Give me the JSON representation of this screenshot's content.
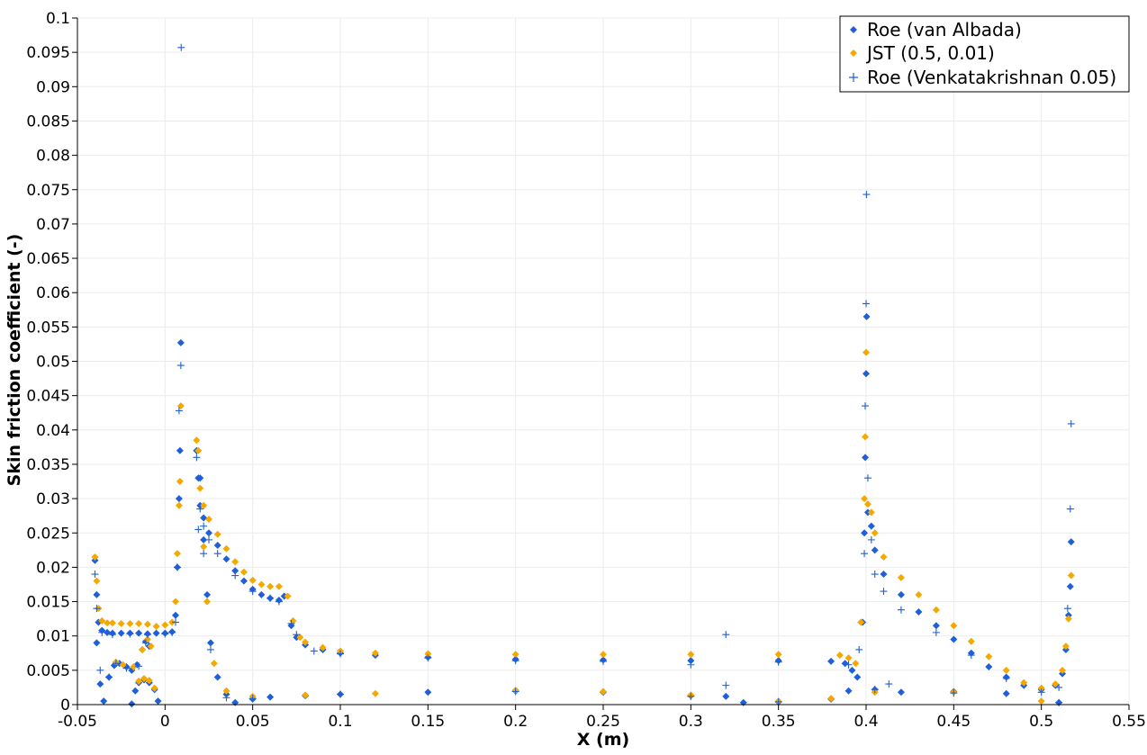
{
  "chart_data": {
    "type": "scatter",
    "title": "",
    "xlabel": "X (m)",
    "ylabel": "Skin friction coefficient (-)",
    "xlim": [
      -0.05,
      0.55
    ],
    "ylim": [
      0,
      0.1
    ],
    "grid": true,
    "legend_position": "top-right",
    "x_ticks": [
      "-0.05",
      "0",
      "0.05",
      "0.1",
      "0.15",
      "0.2",
      "0.25",
      "0.3",
      "0.35",
      "0.4",
      "0.45",
      "0.5",
      "0.55"
    ],
    "y_ticks": [
      "0",
      "0.005",
      "0.01",
      "0.015",
      "0.02",
      "0.025",
      "0.03",
      "0.035",
      "0.04",
      "0.045",
      "0.05",
      "0.055",
      "0.06",
      "0.065",
      "0.07",
      "0.075",
      "0.08",
      "0.085",
      "0.09",
      "0.095",
      "0.1"
    ],
    "series": [
      {
        "name": "Roe (van Albada)",
        "color": "#1f5fd8",
        "marker": "diamond",
        "points": [
          [
            -0.04,
            0.021
          ],
          [
            -0.039,
            0.016
          ],
          [
            -0.038,
            0.012
          ],
          [
            -0.036,
            0.0108
          ],
          [
            -0.033,
            0.0105
          ],
          [
            -0.03,
            0.0104
          ],
          [
            -0.025,
            0.0104
          ],
          [
            -0.02,
            0.0104
          ],
          [
            -0.015,
            0.0104
          ],
          [
            -0.01,
            0.0103
          ],
          [
            -0.005,
            0.0104
          ],
          [
            0.0,
            0.0104
          ],
          [
            0.004,
            0.0106
          ],
          [
            0.006,
            0.013
          ],
          [
            0.007,
            0.02
          ],
          [
            0.008,
            0.03
          ],
          [
            0.0085,
            0.037
          ],
          [
            0.009,
            0.0527
          ],
          [
            -0.039,
            0.009
          ],
          [
            -0.037,
            0.003
          ],
          [
            -0.035,
            0.0005
          ],
          [
            -0.032,
            0.004
          ],
          [
            -0.029,
            0.0057
          ],
          [
            -0.026,
            0.006
          ],
          [
            -0.022,
            0.0055
          ],
          [
            -0.019,
            0.005
          ],
          [
            -0.016,
            0.0058
          ],
          [
            -0.013,
            0.008
          ],
          [
            -0.011,
            0.0092
          ],
          [
            -0.009,
            0.0085
          ],
          [
            -0.019,
            0.0001
          ],
          [
            -0.017,
            0.002
          ],
          [
            -0.015,
            0.0032
          ],
          [
            -0.012,
            0.0036
          ],
          [
            -0.009,
            0.0032
          ],
          [
            -0.006,
            0.0022
          ],
          [
            -0.004,
            0.0005
          ],
          [
            0.018,
            0.037
          ],
          [
            0.019,
            0.033
          ],
          [
            0.02,
            0.029
          ],
          [
            0.022,
            0.0272
          ],
          [
            0.025,
            0.025
          ],
          [
            0.03,
            0.0232
          ],
          [
            0.035,
            0.0212
          ],
          [
            0.04,
            0.0195
          ],
          [
            0.045,
            0.018
          ],
          [
            0.05,
            0.0168
          ],
          [
            0.055,
            0.016
          ],
          [
            0.06,
            0.0155
          ],
          [
            0.065,
            0.0152
          ],
          [
            0.068,
            0.0158
          ],
          [
            0.072,
            0.0115
          ],
          [
            0.075,
            0.0098
          ],
          [
            0.08,
            0.0087
          ],
          [
            0.09,
            0.008
          ],
          [
            0.1,
            0.0075
          ],
          [
            0.12,
            0.0072
          ],
          [
            0.15,
            0.0069
          ],
          [
            0.2,
            0.0066
          ],
          [
            0.25,
            0.0065
          ],
          [
            0.3,
            0.0064
          ],
          [
            0.35,
            0.0064
          ],
          [
            0.38,
            0.0063
          ],
          [
            0.388,
            0.006
          ],
          [
            0.392,
            0.005
          ],
          [
            0.395,
            0.004
          ],
          [
            0.398,
            0.012
          ],
          [
            0.399,
            0.025
          ],
          [
            0.3995,
            0.036
          ],
          [
            0.4,
            0.0482
          ],
          [
            0.4003,
            0.0565
          ],
          [
            0.401,
            0.028
          ],
          [
            0.403,
            0.026
          ],
          [
            0.405,
            0.0225
          ],
          [
            0.41,
            0.019
          ],
          [
            0.42,
            0.016
          ],
          [
            0.43,
            0.0135
          ],
          [
            0.44,
            0.0115
          ],
          [
            0.45,
            0.0095
          ],
          [
            0.46,
            0.0075
          ],
          [
            0.47,
            0.0055
          ],
          [
            0.48,
            0.004
          ],
          [
            0.49,
            0.0028
          ],
          [
            0.5,
            0.0022
          ],
          [
            0.508,
            0.0028
          ],
          [
            0.512,
            0.0045
          ],
          [
            0.514,
            0.008
          ],
          [
            0.5155,
            0.013
          ],
          [
            0.5165,
            0.0172
          ],
          [
            0.517,
            0.0237
          ],
          [
            0.02,
            0.033
          ],
          [
            0.022,
            0.024
          ],
          [
            0.024,
            0.016
          ],
          [
            0.026,
            0.009
          ],
          [
            0.03,
            0.004
          ],
          [
            0.035,
            0.0015
          ],
          [
            0.04,
            0.0003
          ],
          [
            0.05,
            0.0008
          ],
          [
            0.06,
            0.0011
          ],
          [
            0.08,
            0.0013
          ],
          [
            0.1,
            0.0015
          ],
          [
            0.15,
            0.0018
          ],
          [
            0.2,
            0.002
          ],
          [
            0.25,
            0.0018
          ],
          [
            0.3,
            0.0013
          ],
          [
            0.32,
            0.0012
          ],
          [
            0.33,
            0.0003
          ],
          [
            0.35,
            0.0004
          ],
          [
            0.38,
            0.0008
          ],
          [
            0.39,
            0.002
          ],
          [
            0.405,
            0.0022
          ],
          [
            0.42,
            0.0018
          ],
          [
            0.45,
            0.0019
          ],
          [
            0.48,
            0.0016
          ],
          [
            0.51,
            0.0003
          ]
        ]
      },
      {
        "name": "JST (0.5, 0.01)",
        "color": "#f5a800",
        "marker": "diamond",
        "points": [
          [
            -0.04,
            0.0215
          ],
          [
            -0.039,
            0.018
          ],
          [
            -0.038,
            0.014
          ],
          [
            -0.036,
            0.0122
          ],
          [
            -0.033,
            0.0119
          ],
          [
            -0.03,
            0.0119
          ],
          [
            -0.025,
            0.0118
          ],
          [
            -0.02,
            0.0118
          ],
          [
            -0.015,
            0.0118
          ],
          [
            -0.01,
            0.0117
          ],
          [
            -0.005,
            0.0114
          ],
          [
            0.0,
            0.0116
          ],
          [
            0.004,
            0.012
          ],
          [
            0.006,
            0.015
          ],
          [
            0.007,
            0.022
          ],
          [
            0.008,
            0.029
          ],
          [
            0.0085,
            0.0325
          ],
          [
            0.009,
            0.0435
          ],
          [
            -0.028,
            0.0062
          ],
          [
            -0.024,
            0.0058
          ],
          [
            -0.018,
            0.0055
          ],
          [
            -0.013,
            0.008
          ],
          [
            -0.01,
            0.0095
          ],
          [
            -0.008,
            0.0085
          ],
          [
            -0.015,
            0.0034
          ],
          [
            -0.012,
            0.0038
          ],
          [
            -0.009,
            0.0035
          ],
          [
            -0.006,
            0.0024
          ],
          [
            0.018,
            0.0385
          ],
          [
            0.019,
            0.037
          ],
          [
            0.02,
            0.0315
          ],
          [
            0.022,
            0.029
          ],
          [
            0.025,
            0.027
          ],
          [
            0.03,
            0.0248
          ],
          [
            0.035,
            0.0227
          ],
          [
            0.04,
            0.0208
          ],
          [
            0.045,
            0.0193
          ],
          [
            0.05,
            0.0181
          ],
          [
            0.055,
            0.0175
          ],
          [
            0.06,
            0.0172
          ],
          [
            0.065,
            0.0172
          ],
          [
            0.07,
            0.0158
          ],
          [
            0.073,
            0.0122
          ],
          [
            0.077,
            0.0098
          ],
          [
            0.08,
            0.0091
          ],
          [
            0.09,
            0.0083
          ],
          [
            0.1,
            0.0078
          ],
          [
            0.12,
            0.0075
          ],
          [
            0.15,
            0.0074
          ],
          [
            0.2,
            0.0073
          ],
          [
            0.25,
            0.0073
          ],
          [
            0.3,
            0.0073
          ],
          [
            0.35,
            0.0073
          ],
          [
            0.385,
            0.0072
          ],
          [
            0.39,
            0.0068
          ],
          [
            0.394,
            0.006
          ],
          [
            0.397,
            0.012
          ],
          [
            0.399,
            0.03
          ],
          [
            0.3995,
            0.039
          ],
          [
            0.4,
            0.0513
          ],
          [
            0.401,
            0.0292
          ],
          [
            0.403,
            0.028
          ],
          [
            0.405,
            0.025
          ],
          [
            0.41,
            0.0215
          ],
          [
            0.42,
            0.0185
          ],
          [
            0.43,
            0.016
          ],
          [
            0.44,
            0.0138
          ],
          [
            0.45,
            0.0115
          ],
          [
            0.46,
            0.0092
          ],
          [
            0.47,
            0.007
          ],
          [
            0.48,
            0.005
          ],
          [
            0.49,
            0.0032
          ],
          [
            0.5,
            0.0024
          ],
          [
            0.508,
            0.003
          ],
          [
            0.512,
            0.005
          ],
          [
            0.514,
            0.0085
          ],
          [
            0.5155,
            0.0125
          ],
          [
            0.517,
            0.0188
          ],
          [
            0.022,
            0.023
          ],
          [
            0.024,
            0.015
          ],
          [
            0.028,
            0.006
          ],
          [
            0.035,
            0.002
          ],
          [
            0.05,
            0.0012
          ],
          [
            0.08,
            0.0014
          ],
          [
            0.12,
            0.0016
          ],
          [
            0.2,
            0.0021
          ],
          [
            0.25,
            0.0019
          ],
          [
            0.3,
            0.0014
          ],
          [
            0.35,
            0.0005
          ],
          [
            0.38,
            0.0009
          ],
          [
            0.405,
            0.0018
          ],
          [
            0.45,
            0.0018
          ],
          [
            0.5,
            0.0005
          ]
        ]
      },
      {
        "name": "Roe (Venkatakrishnan 0.05)",
        "color": "#1f5fd8",
        "marker": "plus",
        "points": [
          [
            -0.04,
            0.019
          ],
          [
            -0.039,
            0.014
          ],
          [
            -0.037,
            0.005
          ],
          [
            -0.036,
            0.0105
          ],
          [
            -0.03,
            0.0102
          ],
          [
            -0.02,
            0.0103
          ],
          [
            -0.01,
            0.0102
          ],
          [
            0.0,
            0.0103
          ],
          [
            0.004,
            0.0105
          ],
          [
            0.006,
            0.012
          ],
          [
            0.007,
            0.02
          ],
          [
            0.008,
            0.0428
          ],
          [
            0.009,
            0.0494
          ],
          [
            0.0092,
            0.0957
          ],
          [
            -0.032,
            0.004
          ],
          [
            -0.028,
            0.006
          ],
          [
            -0.022,
            0.0053
          ],
          [
            -0.015,
            0.0056
          ],
          [
            -0.011,
            0.009
          ],
          [
            0.018,
            0.036
          ],
          [
            0.019,
            0.0255
          ],
          [
            0.02,
            0.0285
          ],
          [
            0.022,
            0.026
          ],
          [
            0.025,
            0.024
          ],
          [
            0.03,
            0.022
          ],
          [
            0.04,
            0.0188
          ],
          [
            0.05,
            0.0165
          ],
          [
            0.06,
            0.0155
          ],
          [
            0.065,
            0.015
          ],
          [
            0.072,
            0.0118
          ],
          [
            0.075,
            0.0102
          ],
          [
            0.085,
            0.0078
          ],
          [
            0.1,
            0.0074
          ],
          [
            0.15,
            0.0068
          ],
          [
            0.2,
            0.0064
          ],
          [
            0.25,
            0.0063
          ],
          [
            0.3,
            0.0058
          ],
          [
            0.32,
            0.0102
          ],
          [
            0.35,
            0.0062
          ],
          [
            0.39,
            0.0058
          ],
          [
            0.396,
            0.008
          ],
          [
            0.399,
            0.022
          ],
          [
            0.3995,
            0.0435
          ],
          [
            0.4,
            0.0584
          ],
          [
            0.4002,
            0.0743
          ],
          [
            0.401,
            0.033
          ],
          [
            0.403,
            0.024
          ],
          [
            0.405,
            0.019
          ],
          [
            0.41,
            0.0165
          ],
          [
            0.42,
            0.0138
          ],
          [
            0.44,
            0.0105
          ],
          [
            0.46,
            0.0072
          ],
          [
            0.48,
            0.0038
          ],
          [
            0.5,
            0.0018
          ],
          [
            0.51,
            0.0025
          ],
          [
            0.515,
            0.014
          ],
          [
            0.5165,
            0.0285
          ],
          [
            0.517,
            0.0409
          ],
          [
            0.022,
            0.022
          ],
          [
            0.026,
            0.008
          ],
          [
            0.035,
            0.001
          ],
          [
            0.05,
            0.0009
          ],
          [
            0.1,
            0.0015
          ],
          [
            0.2,
            0.0019
          ],
          [
            0.3,
            0.0012
          ],
          [
            0.32,
            0.0028
          ],
          [
            0.35,
            0.0004
          ],
          [
            0.405,
            0.0022
          ],
          [
            0.413,
            0.003
          ],
          [
            0.45,
            0.0017
          ],
          [
            0.51,
            0.0003
          ]
        ]
      }
    ]
  }
}
